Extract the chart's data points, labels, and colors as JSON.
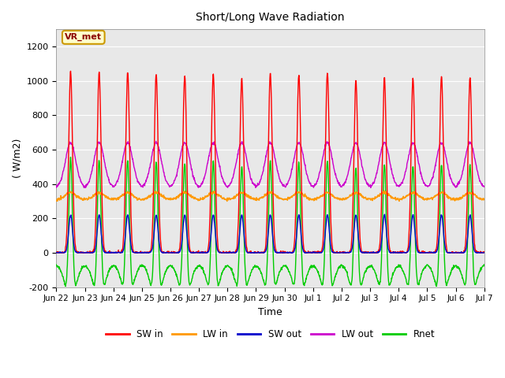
{
  "title": "Short/Long Wave Radiation",
  "xlabel": "Time",
  "ylabel": "( W/m2)",
  "ylim": [
    -200,
    1300
  ],
  "yticks": [
    -200,
    0,
    200,
    400,
    600,
    800,
    1000,
    1200
  ],
  "x_tick_labels": [
    "Jun 22",
    "Jun 23",
    "Jun 24",
    "Jun 25",
    "Jun 26",
    "Jun 27",
    "Jun 28",
    "Jun 29",
    "Jun 30",
    "Jul 1",
    "Jul 2",
    "Jul 3",
    "Jul 4",
    "Jul 5",
    "Jul 6",
    "Jul 7"
  ],
  "legend_labels": [
    "SW in",
    "LW in",
    "SW out",
    "LW out",
    "Rnet"
  ],
  "line_colors": [
    "#ff0000",
    "#ff9900",
    "#0000cc",
    "#cc00cc",
    "#00cc00"
  ],
  "annotation_text": "VR_met",
  "annotation_bg": "#ffffcc",
  "annotation_border": "#cc9900",
  "n_days": 15,
  "pts_per_day": 96,
  "sw_in_peak": [
    1055,
    1050,
    1050,
    1040,
    1030,
    1040,
    1010,
    1045,
    1035,
    1045,
    1000,
    1020,
    1010,
    1025,
    1020
  ],
  "lw_in_night": 310,
  "lw_in_day_add": 40,
  "sw_out_peak": 220,
  "lw_out_night": 380,
  "lw_out_day_peak": 640,
  "rnet_night": -80,
  "rnet_day_peak": 590
}
